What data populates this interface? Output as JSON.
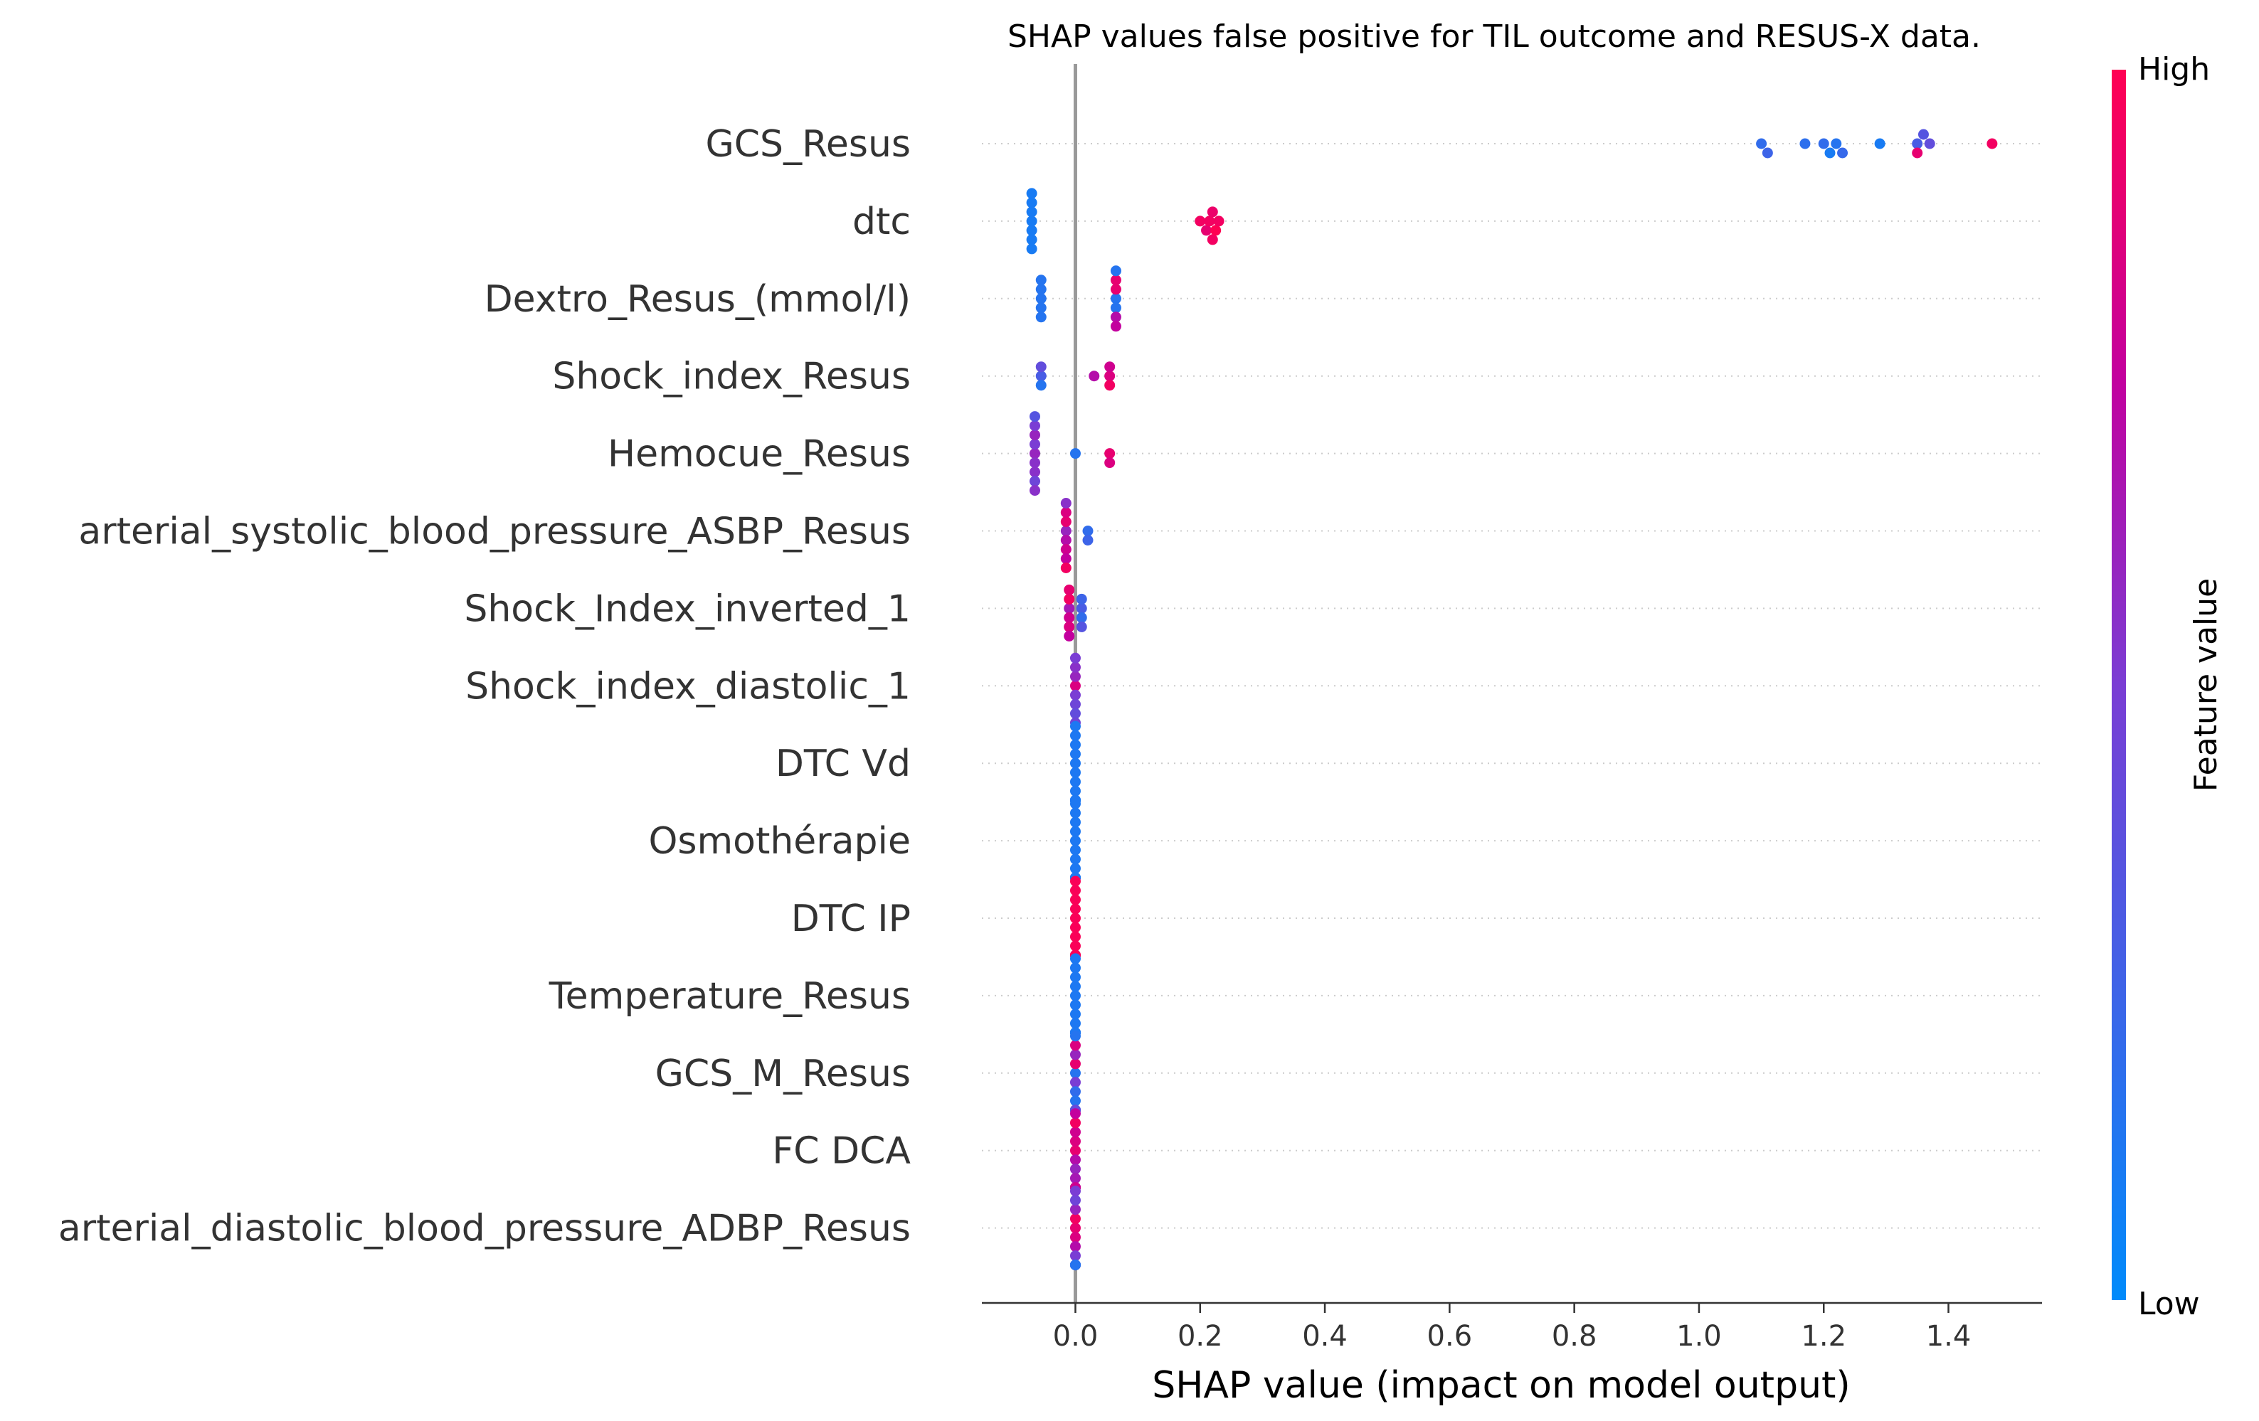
{
  "chart_data": {
    "type": "scatter",
    "title": "SHAP values false positive for TIL outcome and RESUS-X data.",
    "xlabel": "SHAP value (impact on model output)",
    "ylabel": "",
    "xlim": [
      -0.15,
      1.55
    ],
    "xticks": [
      0.0,
      0.2,
      0.4,
      0.6,
      0.8,
      1.0,
      1.2,
      1.4
    ],
    "xtick_labels": [
      "0.0",
      "0.2",
      "0.4",
      "0.6",
      "0.8",
      "1.0",
      "1.2",
      "1.4"
    ],
    "grid": "dotted horizontal lines per feature",
    "colorbar": {
      "label": "Feature value",
      "high": "High",
      "low": "Low",
      "high_color": "#ff0052",
      "low_color": "#008bfb"
    },
    "features": [
      {
        "name": "GCS_Resus",
        "points": [
          [
            1.1,
            0.2
          ],
          [
            1.11,
            0.25
          ],
          [
            1.17,
            0.18
          ],
          [
            1.2,
            0.2
          ],
          [
            1.21,
            0.1
          ],
          [
            1.22,
            0.15
          ],
          [
            1.23,
            0.22
          ],
          [
            1.29,
            0.1
          ],
          [
            1.35,
            0.3
          ],
          [
            1.35,
            0.9
          ],
          [
            1.36,
            0.35
          ],
          [
            1.37,
            0.4
          ],
          [
            1.47,
            0.95
          ]
        ]
      },
      {
        "name": "dtc",
        "points": [
          [
            -0.07,
            0.1
          ],
          [
            -0.07,
            0.1
          ],
          [
            -0.07,
            0.1
          ],
          [
            -0.07,
            0.1
          ],
          [
            -0.07,
            0.1
          ],
          [
            -0.07,
            0.1
          ],
          [
            -0.07,
            0.1
          ],
          [
            0.2,
            0.95
          ],
          [
            0.21,
            0.9
          ],
          [
            0.215,
            0.95
          ],
          [
            0.22,
            0.92
          ],
          [
            0.22,
            0.95
          ],
          [
            0.225,
            1.0
          ],
          [
            0.23,
            0.95
          ]
        ]
      },
      {
        "name": "Dextro_Resus_(mmol/l)",
        "points": [
          [
            -0.055,
            0.15
          ],
          [
            -0.055,
            0.15
          ],
          [
            -0.055,
            0.15
          ],
          [
            -0.055,
            0.15
          ],
          [
            -0.055,
            0.15
          ],
          [
            0.065,
            0.15
          ],
          [
            0.065,
            0.15
          ],
          [
            0.065,
            0.9
          ],
          [
            0.065,
            0.7
          ],
          [
            0.065,
            0.9
          ],
          [
            0.065,
            0.75
          ],
          [
            0.065,
            0.15
          ]
        ]
      },
      {
        "name": "Shock_index_Resus",
        "points": [
          [
            -0.055,
            0.3
          ],
          [
            -0.055,
            0.15
          ],
          [
            -0.055,
            0.4
          ],
          [
            0.03,
            0.7
          ],
          [
            0.055,
            0.85
          ],
          [
            0.055,
            0.95
          ],
          [
            0.055,
            0.8
          ]
        ]
      },
      {
        "name": "Hemocue_Resus",
        "points": [
          [
            -0.065,
            0.6
          ],
          [
            -0.065,
            0.55
          ],
          [
            -0.065,
            0.5
          ],
          [
            -0.065,
            0.55
          ],
          [
            -0.065,
            0.6
          ],
          [
            -0.065,
            0.45
          ],
          [
            -0.065,
            0.5
          ],
          [
            -0.065,
            0.55
          ],
          [
            -0.065,
            0.35
          ],
          [
            0.0,
            0.15
          ],
          [
            0.055,
            0.9
          ],
          [
            0.055,
            0.85
          ]
        ]
      },
      {
        "name": "arterial_systolic_blood_pressure_ASBP_Resus",
        "points": [
          [
            -0.015,
            0.6
          ],
          [
            -0.015,
            0.7
          ],
          [
            -0.015,
            0.9
          ],
          [
            -0.015,
            0.8
          ],
          [
            -0.015,
            0.85
          ],
          [
            -0.015,
            0.75
          ],
          [
            -0.015,
            0.55
          ],
          [
            -0.015,
            0.95
          ],
          [
            0.02,
            0.2
          ],
          [
            0.02,
            0.25
          ]
        ]
      },
      {
        "name": "Shock_Index_inverted_1",
        "points": [
          [
            -0.01,
            0.65
          ],
          [
            -0.01,
            0.8
          ],
          [
            -0.01,
            0.95
          ],
          [
            -0.01,
            0.85
          ],
          [
            -0.01,
            0.9
          ],
          [
            -0.01,
            0.75
          ],
          [
            0.01,
            0.3
          ],
          [
            0.01,
            0.2
          ],
          [
            0.01,
            0.25
          ],
          [
            0.01,
            0.35
          ]
        ]
      },
      {
        "name": "Shock_index_diastolic_1",
        "points": [
          [
            0.0,
            0.85
          ],
          [
            0.0,
            0.5
          ],
          [
            0.0,
            0.6
          ],
          [
            0.0,
            0.45
          ],
          [
            0.0,
            0.55
          ],
          [
            0.0,
            0.4
          ],
          [
            0.0,
            0.5
          ],
          [
            0.0,
            0.45
          ]
        ]
      },
      {
        "name": "DTC Vd",
        "points": [
          [
            0.0,
            0.12
          ],
          [
            0.0,
            0.12
          ],
          [
            0.0,
            0.12
          ],
          [
            0.0,
            0.12
          ],
          [
            0.0,
            0.12
          ],
          [
            0.0,
            0.12
          ],
          [
            0.0,
            0.12
          ],
          [
            0.0,
            0.12
          ],
          [
            0.0,
            0.12
          ],
          [
            0.0,
            0.12
          ],
          [
            0.0,
            0.12
          ],
          [
            0.0,
            0.12
          ],
          [
            0.0,
            0.12
          ],
          [
            0.0,
            0.12
          ],
          [
            0.0,
            0.12
          ]
        ]
      },
      {
        "name": "Osmothérapie",
        "points": [
          [
            0.0,
            0.12
          ],
          [
            0.0,
            0.12
          ],
          [
            0.0,
            0.12
          ],
          [
            0.0,
            0.12
          ],
          [
            0.0,
            0.12
          ],
          [
            0.0,
            0.12
          ],
          [
            0.0,
            0.12
          ],
          [
            0.0,
            0.12
          ],
          [
            0.0,
            0.12
          ],
          [
            0.0,
            0.12
          ],
          [
            0.0,
            0.12
          ],
          [
            0.0,
            0.12
          ],
          [
            0.0,
            0.12
          ],
          [
            0.0,
            0.12
          ],
          [
            0.0,
            0.12
          ]
        ]
      },
      {
        "name": "DTC IP",
        "points": [
          [
            0.0,
            0.98
          ],
          [
            0.0,
            0.98
          ],
          [
            0.0,
            0.98
          ],
          [
            0.0,
            0.98
          ],
          [
            0.0,
            0.98
          ],
          [
            0.0,
            0.98
          ],
          [
            0.0,
            0.98
          ],
          [
            0.0,
            0.98
          ],
          [
            0.0,
            0.98
          ],
          [
            0.0,
            0.98
          ],
          [
            0.0,
            0.98
          ],
          [
            0.0,
            0.98
          ],
          [
            0.0,
            0.98
          ],
          [
            0.0,
            0.98
          ],
          [
            0.0,
            0.98
          ]
        ]
      },
      {
        "name": "Temperature_Resus",
        "points": [
          [
            0.0,
            0.12
          ],
          [
            0.0,
            0.12
          ],
          [
            0.0,
            0.12
          ],
          [
            0.0,
            0.12
          ],
          [
            0.0,
            0.12
          ],
          [
            0.0,
            0.12
          ],
          [
            0.0,
            0.12
          ],
          [
            0.0,
            0.12
          ],
          [
            0.0,
            0.12
          ],
          [
            0.0,
            0.12
          ],
          [
            0.0,
            0.12
          ],
          [
            0.0,
            0.12
          ],
          [
            0.0,
            0.12
          ],
          [
            0.0,
            0.12
          ],
          [
            0.0,
            0.12
          ]
        ]
      },
      {
        "name": "GCS_M_Resus",
        "points": [
          [
            0.0,
            0.15
          ],
          [
            0.0,
            0.5
          ],
          [
            0.0,
            0.9
          ],
          [
            0.0,
            0.2
          ],
          [
            0.0,
            0.6
          ],
          [
            0.0,
            0.15
          ],
          [
            0.0,
            0.85
          ],
          [
            0.0,
            0.3
          ],
          [
            0.0,
            0.15
          ],
          [
            0.0,
            0.7
          ],
          [
            0.0,
            0.2
          ],
          [
            0.0,
            0.15
          ],
          [
            0.0,
            0.15
          ],
          [
            0.0,
            0.4
          ]
        ]
      },
      {
        "name": "FC  DCA",
        "points": [
          [
            0.0,
            0.9
          ],
          [
            0.0,
            0.7
          ],
          [
            0.0,
            0.85
          ],
          [
            0.0,
            0.6
          ],
          [
            0.0,
            0.8
          ],
          [
            0.0,
            0.65
          ],
          [
            0.0,
            0.95
          ],
          [
            0.0,
            0.55
          ],
          [
            0.0,
            0.75
          ],
          [
            0.0,
            0.85
          ],
          [
            0.0,
            0.9
          ],
          [
            0.0,
            0.6
          ],
          [
            0.0,
            0.7
          ],
          [
            0.0,
            0.8
          ]
        ]
      },
      {
        "name": "arterial_diastolic_blood_pressure_ADBP_Resus",
        "points": [
          [
            0.0,
            0.9
          ],
          [
            0.0,
            0.85
          ],
          [
            0.0,
            0.95
          ],
          [
            0.0,
            0.7
          ],
          [
            0.0,
            0.6
          ],
          [
            0.0,
            0.5
          ],
          [
            0.0,
            0.45
          ],
          [
            0.0,
            0.4
          ],
          [
            0.0,
            0.5
          ],
          [
            0.0,
            0.55
          ],
          [
            0.0,
            0.3
          ],
          [
            0.0,
            0.25
          ],
          [
            0.0,
            0.2
          ],
          [
            0.0,
            0.15
          ]
        ]
      }
    ]
  }
}
